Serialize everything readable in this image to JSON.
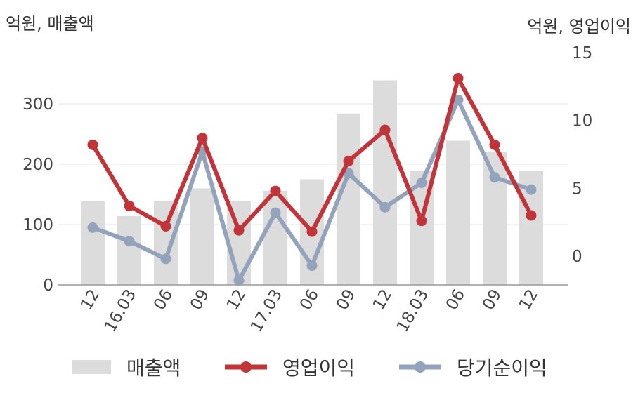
{
  "units": {
    "left": "억원, 매출액",
    "right": "억원, 영업이익"
  },
  "chart_data": {
    "type": "bar",
    "categories": [
      "12",
      "16.03",
      "06",
      "09",
      "12",
      "17.03",
      "06",
      "09",
      "12",
      "18.03",
      "06",
      "09",
      "12"
    ],
    "left_axis": {
      "ticks": [
        "0",
        "100",
        "200",
        "300"
      ],
      "ylim": [
        0,
        400
      ]
    },
    "right_axis": {
      "ticks": [
        "0",
        "5",
        "10",
        "15"
      ],
      "ylim": [
        -2,
        15
      ]
    },
    "grid": true,
    "legend_position": "bottom",
    "series": [
      {
        "name": "매출액",
        "type": "bar",
        "axis": "left",
        "color": "#dcdcdc",
        "values": [
          139,
          114,
          139,
          160,
          139,
          156,
          175,
          284,
          339,
          189,
          239,
          220,
          189
        ]
      },
      {
        "name": "영업이익",
        "type": "line",
        "axis": "right",
        "color": "#c0343a",
        "values": [
          8.2,
          3.7,
          2.2,
          8.7,
          1.9,
          4.8,
          1.8,
          7.0,
          9.3,
          2.6,
          13.1,
          8.2,
          3.0
        ]
      },
      {
        "name": "당기순이익",
        "type": "line",
        "axis": "right",
        "color": "#94a3bc",
        "values": [
          2.1,
          1.1,
          -0.2,
          7.7,
          -1.8,
          3.2,
          -0.7,
          6.1,
          3.6,
          5.4,
          11.5,
          5.8,
          4.9
        ]
      }
    ]
  }
}
